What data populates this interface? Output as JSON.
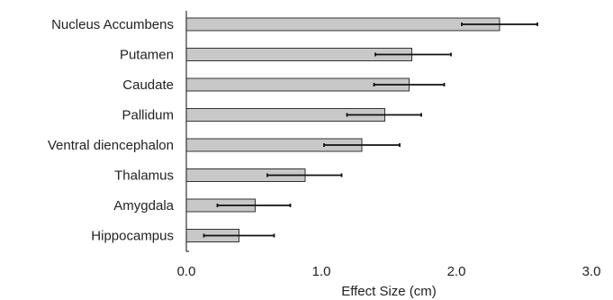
{
  "chart_data": {
    "type": "bar",
    "orientation": "horizontal",
    "title": "",
    "xlabel": "Effect Size (cm)",
    "ylabel": "",
    "xlim": [
      0,
      3
    ],
    "xticks": [
      "0.0",
      "1.0",
      "2.0",
      "3.0"
    ],
    "grid": false,
    "categories": [
      "Nucleus Accumbens",
      "Putamen",
      "Caudate",
      "Pallidum",
      "Ventral diencephalon",
      "Thalamus",
      "Amygdala",
      "Hippocampus"
    ],
    "values": [
      2.32,
      1.67,
      1.65,
      1.47,
      1.3,
      0.88,
      0.51,
      0.39
    ],
    "error_low": [
      2.04,
      1.4,
      1.39,
      1.19,
      1.02,
      0.6,
      0.23,
      0.13
    ],
    "error_high": [
      2.6,
      1.96,
      1.91,
      1.74,
      1.58,
      1.15,
      0.77,
      0.65
    ],
    "colors": {
      "bar_fill": "#c8c8c8",
      "bar_stroke": "#333333",
      "error_bar": "#111111",
      "axis": "#333333"
    }
  }
}
